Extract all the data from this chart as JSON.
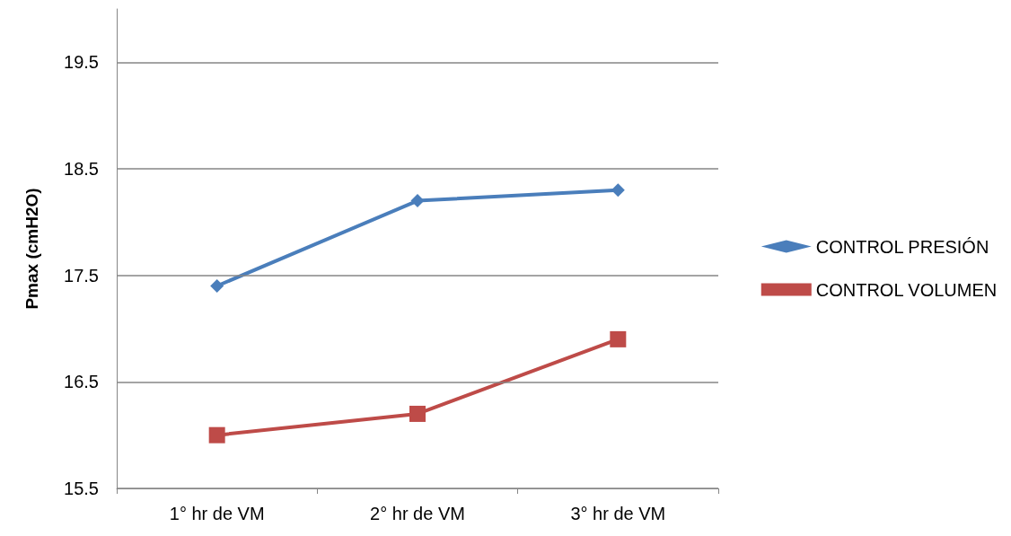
{
  "chart_data": {
    "type": "line",
    "ylabel": "Pmax (cmH2O)",
    "categories": [
      "1° hr de VM",
      "2° hr de VM",
      "3° hr de VM"
    ],
    "series": [
      {
        "name": "CONTROL PRESIÓN",
        "color": "#4a7ebb",
        "marker": "diamond",
        "values": [
          17.4,
          18.2,
          18.3
        ]
      },
      {
        "name": "CONTROL VOLUMEN",
        "color": "#be4b48",
        "marker": "square",
        "values": [
          16.0,
          16.2,
          16.9
        ]
      }
    ],
    "ylim": [
      15.5,
      20
    ],
    "yticks": [
      15.5,
      16.5,
      17.5,
      18.5,
      19.5
    ],
    "grid": "y",
    "legend": "right",
    "line_style": "solid"
  }
}
